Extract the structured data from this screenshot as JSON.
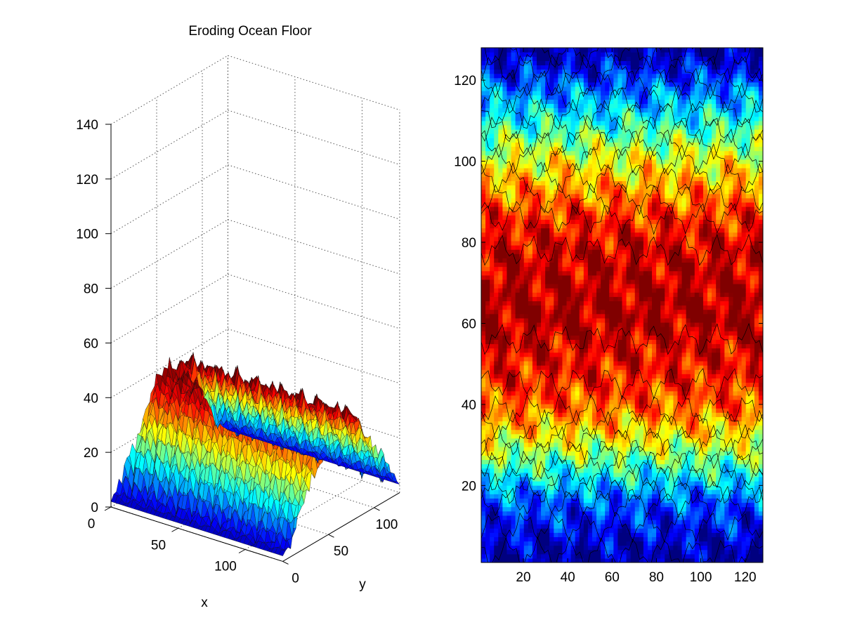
{
  "chart_data": [
    {
      "type": "surface",
      "title": "Eroding Ocean Floor",
      "xlabel": "x",
      "ylabel": "y",
      "zlabel": "",
      "x_ticks": [
        0,
        50,
        100
      ],
      "y_ticks": [
        0,
        50,
        100
      ],
      "z_ticks": [
        0,
        20,
        40,
        60,
        80,
        100,
        120,
        140
      ],
      "xlim": [
        0,
        128
      ],
      "ylim": [
        0,
        128
      ],
      "zlim": [
        0,
        140
      ],
      "grid": true,
      "colormap": "jet",
      "profile_y": [
        0,
        10,
        20,
        30,
        40,
        50,
        60,
        70,
        80,
        90,
        100,
        110,
        120,
        128
      ],
      "profile_z": [
        2,
        6,
        14,
        22,
        30,
        35,
        37,
        38,
        36,
        30,
        22,
        14,
        8,
        3
      ]
    },
    {
      "type": "filled_contour",
      "title": "",
      "xlabel": "",
      "ylabel": "",
      "x_ticks": [
        20,
        40,
        60,
        80,
        100,
        120
      ],
      "y_ticks": [
        20,
        40,
        60,
        80,
        100,
        120
      ],
      "xlim": [
        1,
        128
      ],
      "ylim": [
        1,
        128
      ],
      "colormap": "jet",
      "level_range": [
        0,
        38
      ],
      "band_y": [
        1,
        8,
        16,
        24,
        32,
        40,
        48,
        56,
        62,
        70,
        78,
        86,
        94,
        102,
        110,
        118,
        124,
        128
      ],
      "band_z": [
        1,
        4,
        8,
        16,
        24,
        30,
        33,
        35,
        37,
        36,
        35,
        32,
        27,
        22,
        15,
        9,
        4,
        1
      ]
    }
  ]
}
